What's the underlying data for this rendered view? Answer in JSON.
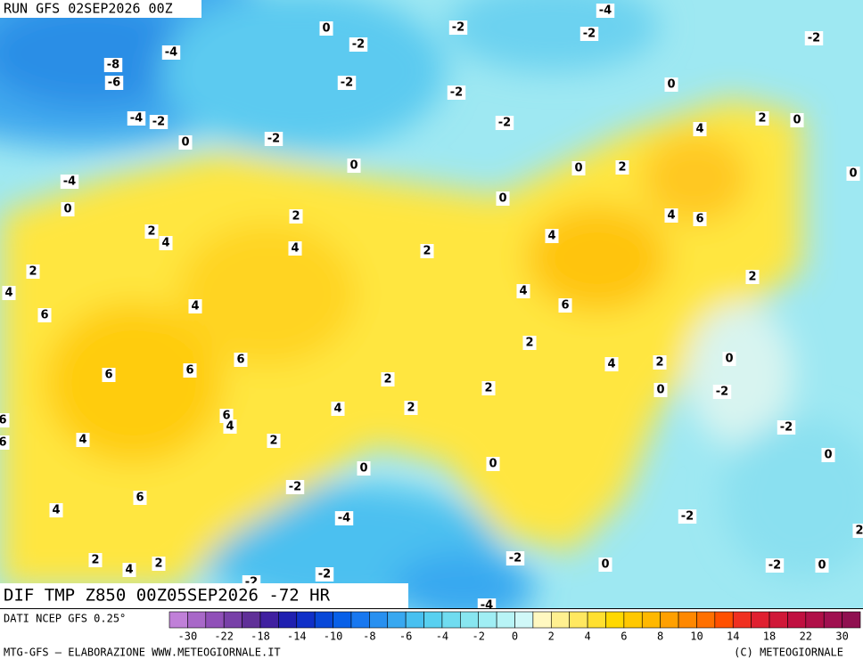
{
  "header": {
    "run": "RUN GFS 02SEP2026 00Z"
  },
  "map": {
    "title": "DIF TMP Z850 00Z05SEP2026 -72 HR",
    "labels": [
      0,
      -2,
      -2,
      -4,
      -2,
      -2,
      -4,
      -8,
      -6,
      -2,
      0,
      -2,
      -4,
      -2,
      -2,
      2,
      0,
      4,
      0,
      -2,
      0,
      0,
      2,
      0,
      -4,
      0,
      0,
      2,
      4,
      6,
      2,
      4,
      4,
      2,
      4,
      2,
      2,
      4,
      4,
      4,
      6,
      6,
      2,
      6,
      4,
      2,
      0,
      6,
      6,
      2,
      2,
      0,
      -2,
      4,
      2,
      6,
      4,
      -2,
      6,
      6,
      4,
      2,
      0,
      0,
      0,
      -2,
      6,
      4,
      -4,
      -2,
      2,
      2,
      4,
      2,
      -2,
      0,
      -2,
      0,
      -2,
      -2,
      -4
    ]
  },
  "legend": {
    "source": "DATI NCEP GFS 0.25°",
    "colors": [
      "#c080d8",
      "#a868c8",
      "#9050b8",
      "#7840a8",
      "#603098",
      "#4020a0",
      "#2020b0",
      "#1030c8",
      "#0848d8",
      "#0860e8",
      "#1878f0",
      "#2890f0",
      "#38a8f0",
      "#48c0f0",
      "#58d0f0",
      "#70dcf0",
      "#88e6f0",
      "#a0eef4",
      "#b8f4f6",
      "#d0f8f8",
      "#fff8c0",
      "#fff090",
      "#ffe860",
      "#ffe030",
      "#ffd800",
      "#ffc800",
      "#ffb800",
      "#ffa000",
      "#ff8800",
      "#ff7000",
      "#ff5000",
      "#f03020",
      "#e02030",
      "#d01838",
      "#c01040",
      "#b01048",
      "#a01050",
      "#901050"
    ],
    "ticks": [
      -30,
      -22,
      -18,
      -14,
      -10,
      -8,
      -6,
      -4,
      -2,
      0,
      2,
      4,
      6,
      8,
      10,
      14,
      18,
      22,
      30
    ]
  },
  "footer": {
    "left": "MTG-GFS — ELABORAZIONE WWW.METEOGIORNALE.IT",
    "right": "(C) METEOGIORNALE"
  }
}
